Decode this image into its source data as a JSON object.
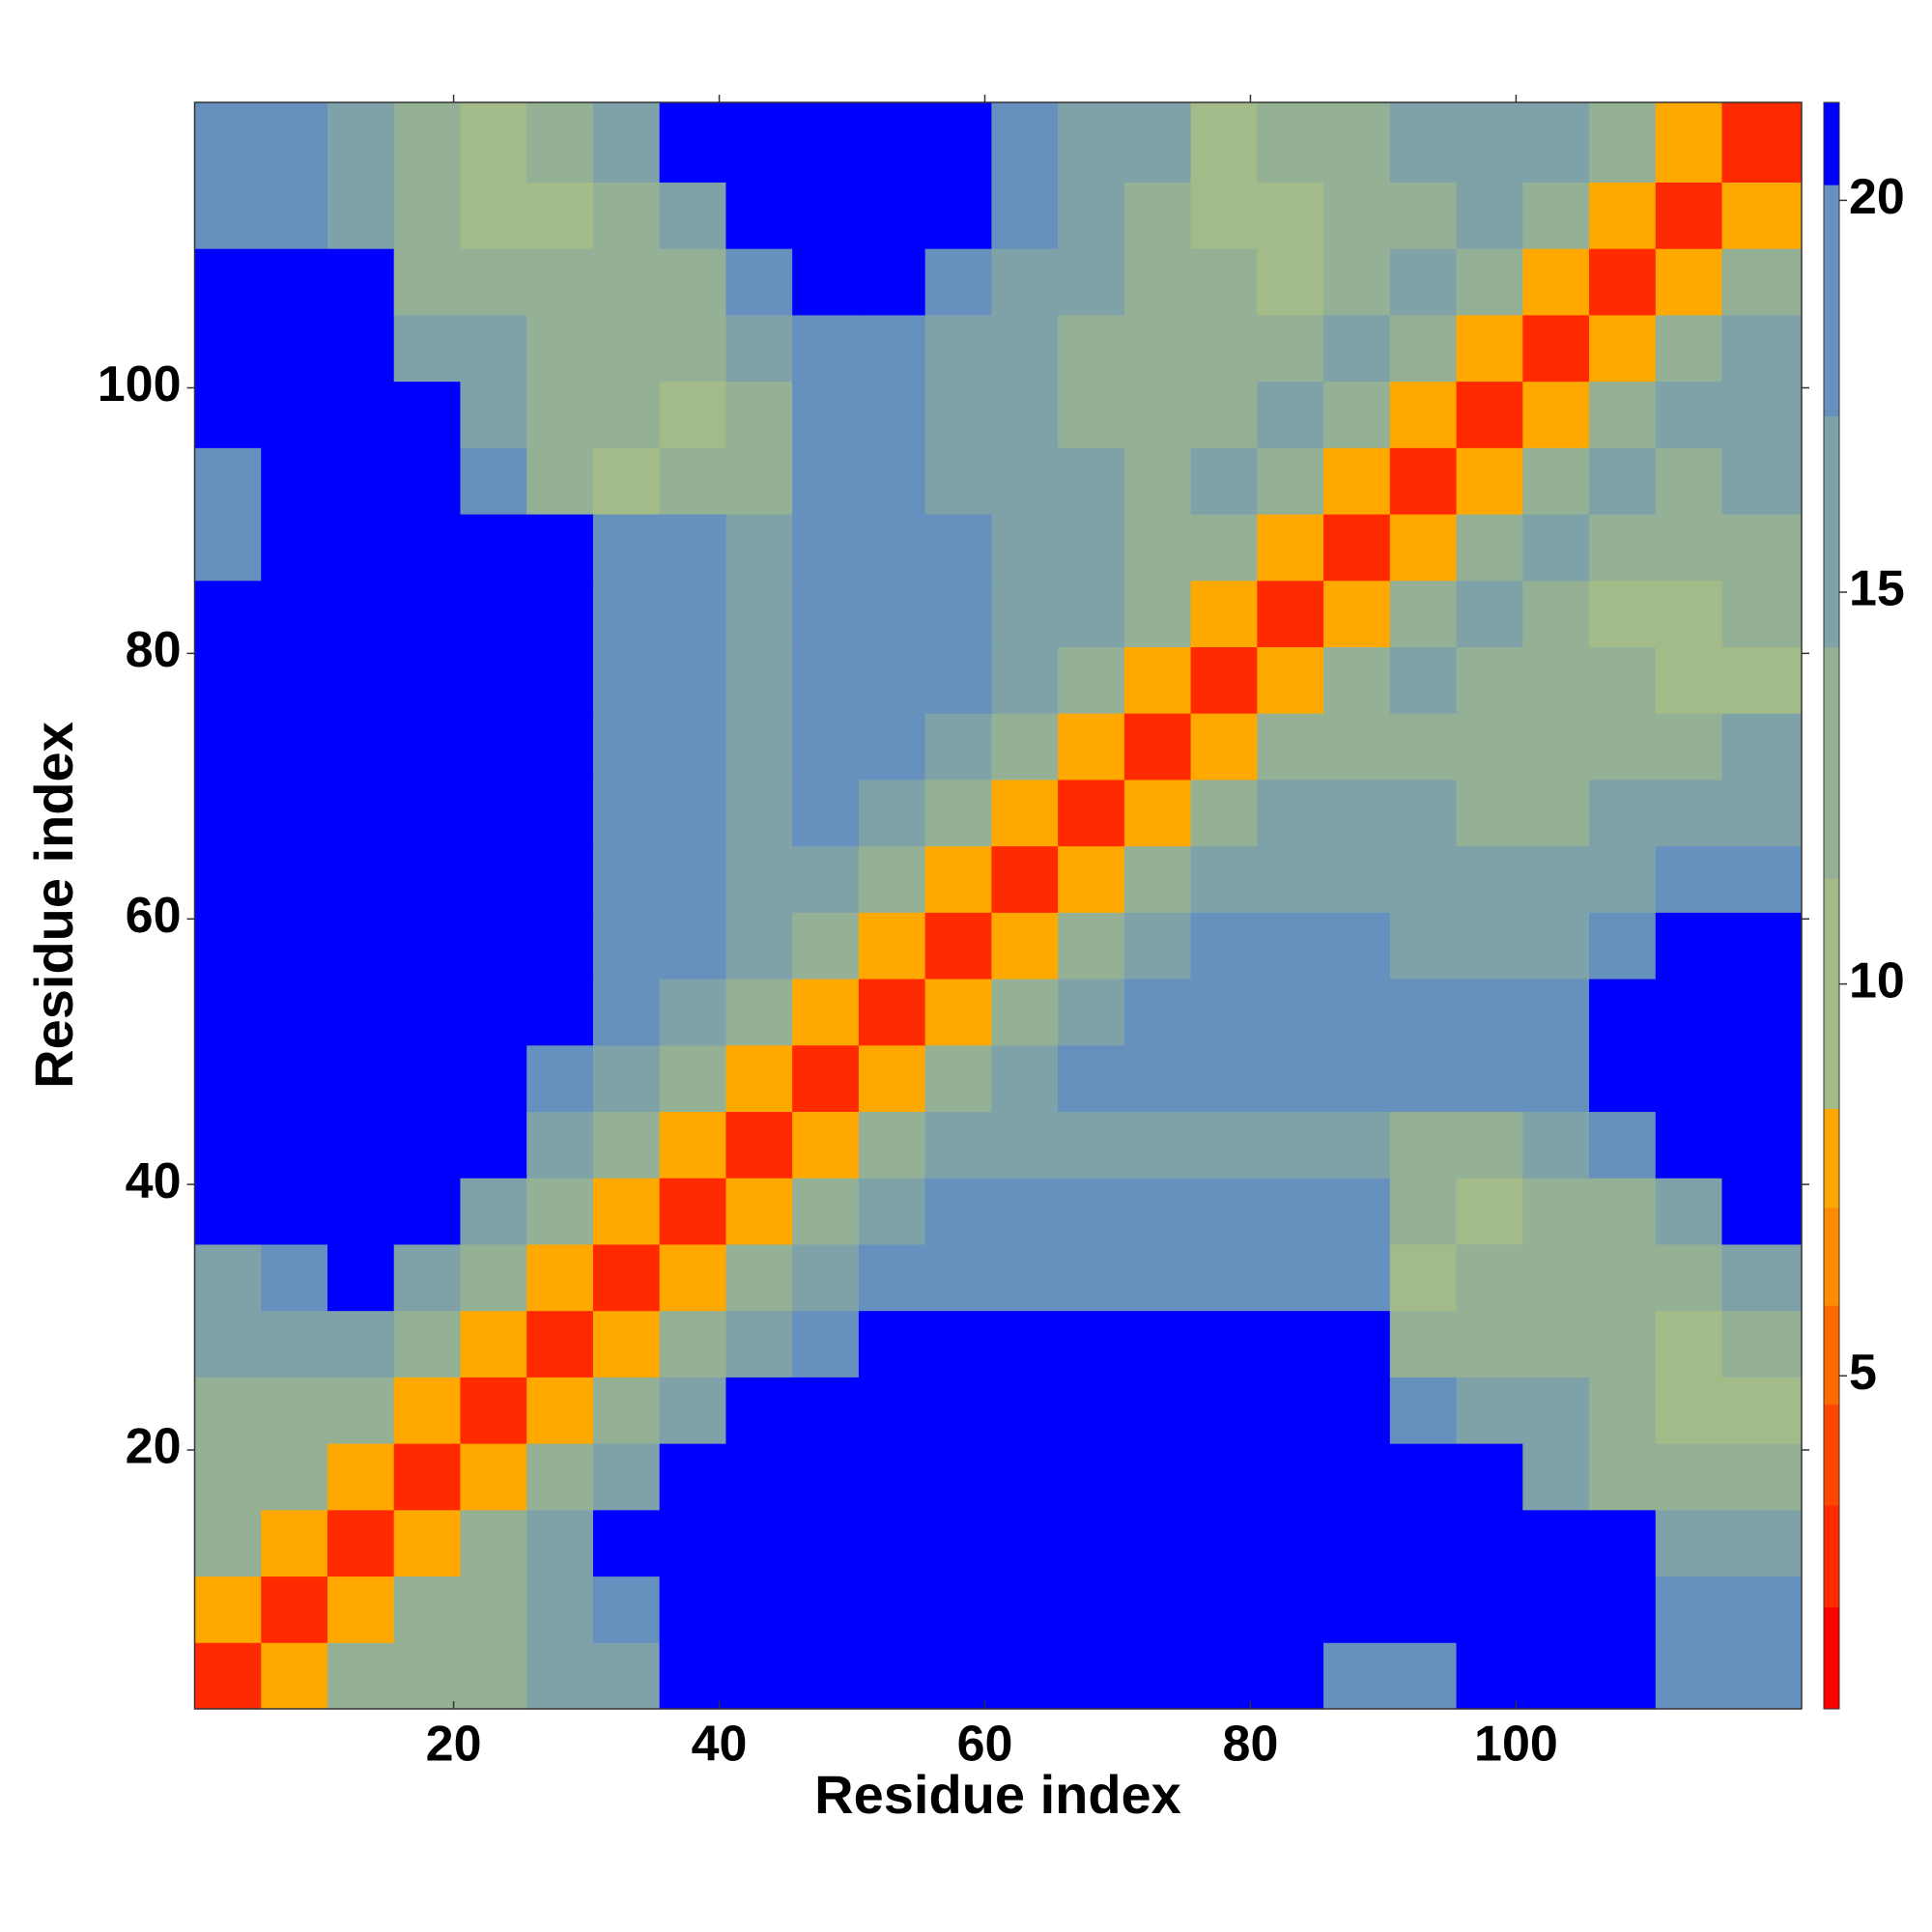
{
  "chart_data": {
    "type": "heatmap",
    "xlabel": "Residue index",
    "ylabel": "Residue index",
    "x_edges": [
      0.5,
      5.5,
      10.5,
      15.5,
      20.5,
      25.5,
      30.5,
      35.5,
      40.5,
      45.5,
      50.5,
      55.5,
      60.5,
      65.5,
      70.5,
      75.5,
      80.5,
      85.5,
      90.5,
      95.5,
      100.5,
      105.5,
      110.5,
      115.5,
      121.5
    ],
    "y_edges": [
      0.5,
      5.5,
      10.5,
      15.5,
      20.5,
      25.5,
      30.5,
      35.5,
      40.5,
      45.5,
      50.5,
      55.5,
      60.5,
      65.5,
      70.5,
      75.5,
      80.5,
      85.5,
      90.5,
      95.5,
      100.5,
      105.5,
      110.5,
      115.5,
      121.5
    ],
    "z": [
      [
        3,
        8,
        12,
        14,
        14,
        16,
        17,
        21,
        21,
        21,
        21,
        21,
        21,
        21,
        21,
        21,
        21,
        19,
        19,
        21,
        21,
        21,
        20,
        18
      ],
      [
        8,
        3,
        8,
        12,
        14,
        16,
        18,
        21,
        21,
        21,
        21,
        21,
        21,
        21,
        21,
        21,
        21,
        21,
        21,
        21,
        21,
        21,
        20,
        18
      ],
      [
        12,
        8,
        3,
        8,
        12,
        15,
        21,
        21,
        21,
        21,
        21,
        21,
        21,
        21,
        21,
        21,
        21,
        21,
        21,
        21,
        21,
        21,
        17,
        16
      ],
      [
        14,
        12,
        8,
        3,
        8,
        12,
        16,
        21,
        21,
        21,
        21,
        21,
        21,
        21,
        21,
        21,
        21,
        21,
        21,
        21,
        17,
        14,
        12,
        12
      ],
      [
        14,
        14,
        12,
        8,
        3,
        8,
        12,
        16,
        21,
        21,
        21,
        21,
        21,
        21,
        21,
        21,
        21,
        21,
        18,
        16,
        15,
        13,
        11,
        11
      ],
      [
        16,
        16,
        15,
        12,
        8,
        3,
        8,
        12,
        16,
        18,
        21,
        21,
        21,
        21,
        21,
        21,
        21,
        21,
        13,
        13,
        14,
        12,
        11,
        14
      ],
      [
        17,
        18,
        21,
        16,
        12,
        8,
        3,
        8,
        12,
        16,
        18,
        18,
        18,
        19,
        19,
        19,
        19,
        20,
        11,
        12,
        13,
        12,
        13,
        17
      ],
      [
        21,
        21,
        21,
        21,
        16,
        12,
        8,
        3,
        8,
        12,
        16,
        18,
        18,
        18,
        18,
        18,
        18,
        18,
        12,
        10,
        12,
        14,
        16,
        21
      ],
      [
        21,
        21,
        21,
        21,
        21,
        16,
        12,
        8,
        3,
        8,
        12,
        16,
        17,
        17,
        17,
        17,
        17,
        17,
        14,
        12,
        16,
        18,
        21,
        21
      ],
      [
        21,
        21,
        21,
        21,
        21,
        18,
        16,
        12,
        8,
        3,
        8,
        12,
        16,
        18,
        18,
        18,
        18,
        18,
        19,
        19,
        20,
        21,
        21,
        21
      ],
      [
        21,
        21,
        21,
        21,
        21,
        21,
        18,
        16,
        12,
        8,
        3,
        8,
        12,
        16,
        19,
        19,
        19,
        20,
        19,
        19,
        19,
        21,
        21,
        21
      ],
      [
        21,
        21,
        21,
        21,
        21,
        21,
        18,
        18,
        16,
        12,
        8,
        3,
        8,
        12,
        16,
        20,
        20,
        20,
        17,
        17,
        17,
        20,
        21,
        21
      ],
      [
        21,
        21,
        21,
        21,
        21,
        21,
        18,
        18,
        17,
        16,
        12,
        8,
        3,
        8,
        12,
        16,
        17,
        16,
        16,
        16,
        16,
        17,
        19,
        19
      ],
      [
        21,
        21,
        21,
        21,
        21,
        21,
        19,
        18,
        17,
        18,
        16,
        12,
        8,
        3,
        8,
        12,
        16,
        15,
        15,
        12,
        12,
        15,
        16,
        17
      ],
      [
        21,
        21,
        21,
        21,
        21,
        21,
        19,
        18,
        17,
        18,
        19,
        16,
        12,
        8,
        3,
        8,
        12,
        14,
        14,
        14,
        14,
        14,
        14,
        15
      ],
      [
        21,
        21,
        21,
        21,
        21,
        21,
        19,
        18,
        17,
        18,
        19,
        20,
        16,
        12,
        8,
        3,
        8,
        12,
        16,
        13,
        13,
        13,
        11,
        11
      ],
      [
        21,
        21,
        21,
        21,
        21,
        21,
        19,
        18,
        17,
        18,
        19,
        20,
        17,
        16,
        12,
        8,
        3,
        8,
        12,
        16,
        12,
        11,
        11,
        12
      ],
      [
        19,
        21,
        21,
        21,
        21,
        21,
        20,
        18,
        17,
        18,
        20,
        20,
        16,
        15,
        14,
        12,
        8,
        3,
        8,
        12,
        16,
        14,
        12,
        12
      ],
      [
        19,
        21,
        21,
        21,
        18,
        13,
        11,
        12,
        14,
        19,
        19,
        17,
        16,
        15,
        14,
        16,
        12,
        8,
        3,
        8,
        12,
        16,
        14,
        15
      ],
      [
        21,
        21,
        21,
        21,
        16,
        13,
        12,
        10,
        12,
        19,
        19,
        17,
        16,
        12,
        14,
        13,
        16,
        12,
        8,
        3,
        8,
        12,
        16,
        15
      ],
      [
        21,
        21,
        21,
        17,
        15,
        14,
        13,
        12,
        16,
        20,
        19,
        17,
        16,
        12,
        14,
        13,
        12,
        16,
        12,
        8,
        3,
        8,
        12,
        16
      ],
      [
        21,
        21,
        21,
        14,
        13,
        12,
        12,
        14,
        18,
        21,
        21,
        20,
        17,
        15,
        14,
        13,
        11,
        14,
        16,
        12,
        8,
        3,
        8,
        12
      ],
      [
        20,
        20,
        17,
        12,
        11,
        11,
        13,
        16,
        21,
        21,
        21,
        21,
        19,
        16,
        14,
        11,
        11,
        12,
        14,
        16,
        12,
        8,
        3,
        8
      ],
      [
        18,
        18,
        16,
        12,
        11,
        14,
        17,
        21,
        21,
        21,
        21,
        21,
        19,
        17,
        15,
        11,
        12,
        12,
        15,
        15,
        16,
        12,
        8,
        3
      ]
    ],
    "xlim": [
      0.5,
      121.5
    ],
    "ylim": [
      0.5,
      121.5
    ],
    "xticks": [
      20,
      40,
      60,
      80,
      100
    ],
    "yticks": [
      20,
      40,
      60,
      80,
      100
    ],
    "colorbar": {
      "lim": [
        0.75,
        21.25
      ],
      "ticks": [
        5,
        10,
        15,
        20
      ],
      "levels": [
        {
          "from": 0.75,
          "color": "#ff0000"
        },
        {
          "from": 2.05,
          "color": "#ff2a00"
        },
        {
          "from": 3.35,
          "color": "#ff4500"
        },
        {
          "from": 4.64,
          "color": "#ff6a00"
        },
        {
          "from": 5.9,
          "color": "#ff8c00"
        },
        {
          "from": 7.15,
          "color": "#ffa800"
        },
        {
          "from": 8.41,
          "color": "#a3bb88"
        },
        {
          "from": 11.35,
          "color": "#94b196"
        },
        {
          "from": 14.3,
          "color": "#7fa2a9"
        },
        {
          "from": 17.25,
          "color": "#6690bd"
        },
        {
          "from": 20.2,
          "color": "#0000ff"
        }
      ]
    }
  }
}
